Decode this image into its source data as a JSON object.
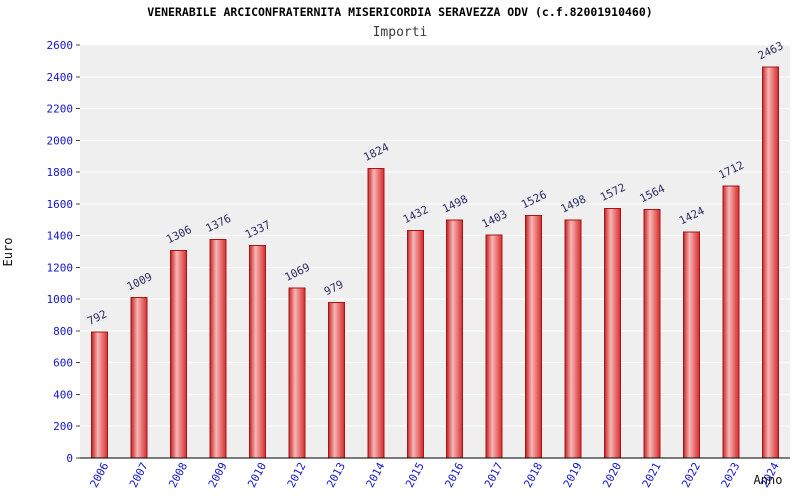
{
  "header": {
    "title": "VENERABILE ARCICONFRATERNITA MISERICORDIA SERAVEZZA ODV (c.f.82001910460)",
    "subtitle": "Importi"
  },
  "chart_data": {
    "type": "bar",
    "title": "VENERABILE ARCICONFRATERNITA MISERICORDIA SERAVEZZA ODV (c.f.82001910460)",
    "subtitle": "Importi",
    "xlabel": "Anno",
    "ylabel": "Euro",
    "categories": [
      "2006",
      "2007",
      "2008",
      "2009",
      "2010",
      "2012",
      "2013",
      "2014",
      "2015",
      "2016",
      "2017",
      "2018",
      "2019",
      "2020",
      "2021",
      "2022",
      "2023",
      "2024"
    ],
    "values": [
      792,
      1009,
      1306,
      1376,
      1337,
      1069,
      979,
      1824,
      1432,
      1498,
      1403,
      1526,
      1498,
      1572,
      1564,
      1424,
      1712,
      2463
    ],
    "ylim": [
      0,
      2600
    ],
    "ytick_step": 200,
    "legend": "none",
    "grid": "horizontal-white",
    "colors": {
      "bar_edge": "#aa1414",
      "bar_main": "#d62c2c",
      "bar_highlight": "#f7b6b6",
      "plot_background": "#efefef",
      "gridline": "#ffffff",
      "tick_label": "#1515c8",
      "value_label": "#2d2d64",
      "axis_line": "#000000"
    }
  }
}
